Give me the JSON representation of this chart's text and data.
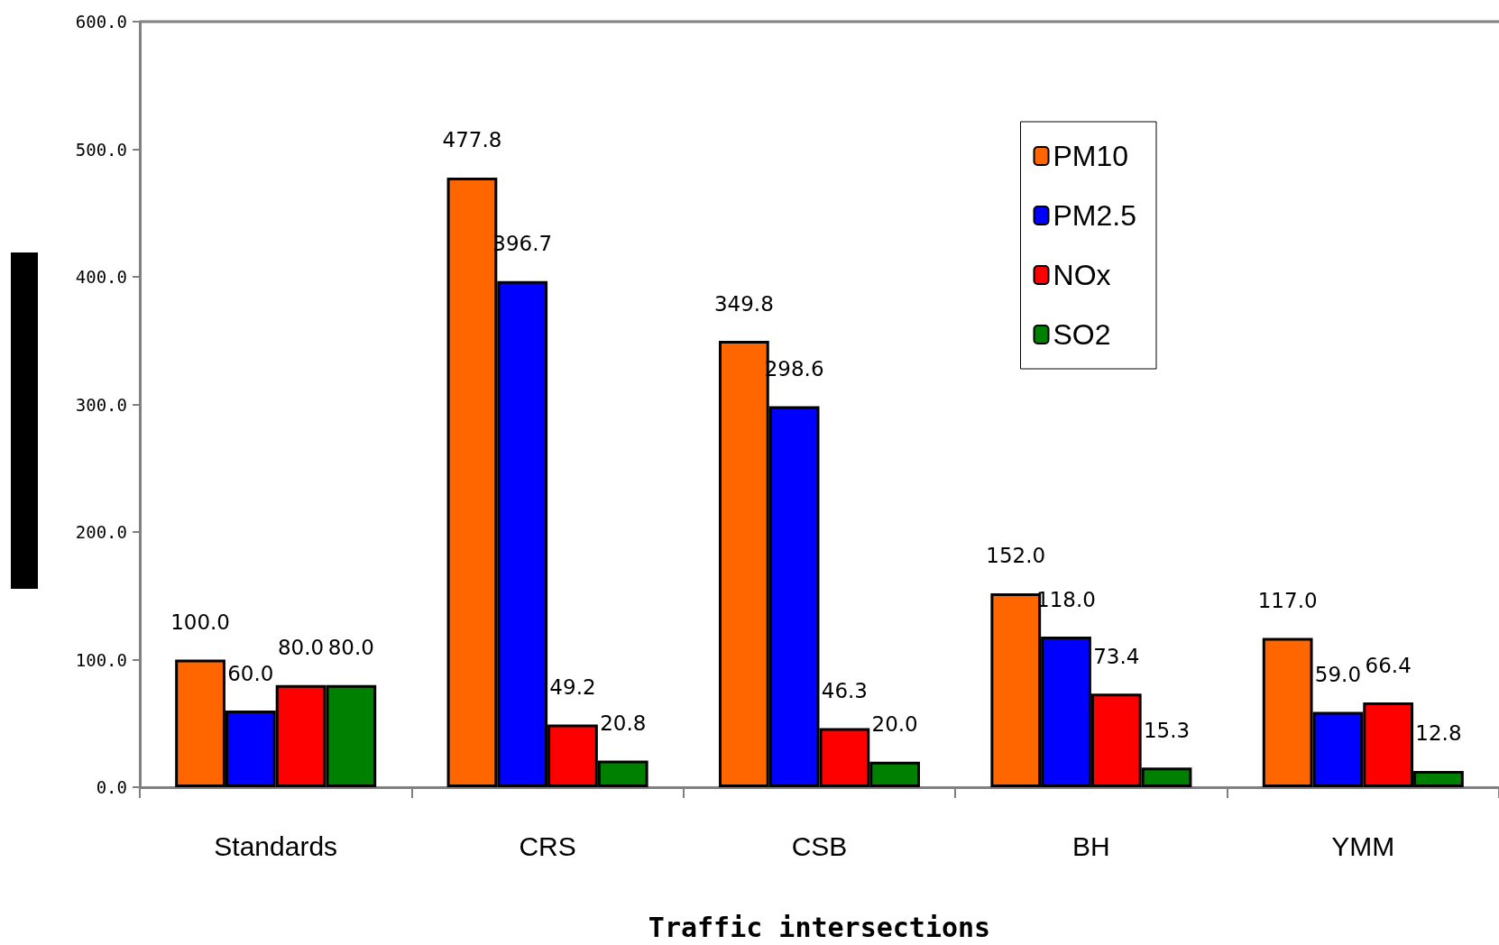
{
  "chart_data": {
    "type": "bar",
    "xlabel": "Traffic intersections",
    "categories": [
      "Standards",
      "CRS",
      "CSB",
      "BH",
      "YMM"
    ],
    "series": [
      {
        "name": "PM10",
        "color": "#ff6600",
        "values": [
          100.0,
          477.8,
          349.8,
          152.0,
          117.0
        ],
        "value_labels": [
          "100.0",
          "477.8",
          "349.8",
          "152.0",
          "117.0"
        ]
      },
      {
        "name": "PM2.5",
        "color": "#0000ff",
        "values": [
          60.0,
          396.7,
          298.6,
          118.0,
          59.0
        ],
        "value_labels": [
          "60.0",
          "396.7",
          "298.6",
          "118.0",
          "59.0"
        ]
      },
      {
        "name": "NOx",
        "color": "#ff0000",
        "values": [
          80.0,
          49.2,
          46.3,
          73.4,
          66.4
        ],
        "value_labels": [
          "80.0",
          "49.2",
          "46.3",
          "73.4",
          "66.4"
        ]
      },
      {
        "name": "SO2",
        "color": "#008000",
        "values": [
          80.0,
          20.8,
          20.0,
          15.3,
          12.8
        ],
        "value_labels": [
          "80.0",
          "20.8",
          "20.0",
          "15.3",
          "12.8"
        ]
      }
    ],
    "ylim": [
      0,
      600
    ],
    "yticks": [
      {
        "value": 0,
        "label": "0.0"
      },
      {
        "value": 100,
        "label": "100.0"
      },
      {
        "value": 200,
        "label": "200.0"
      },
      {
        "value": 300,
        "label": "300.0"
      },
      {
        "value": 400,
        "label": "400.0"
      },
      {
        "value": 500,
        "label": "500.0"
      },
      {
        "value": 600,
        "label": "600.0"
      }
    ],
    "grid": false,
    "legend": "top right"
  }
}
